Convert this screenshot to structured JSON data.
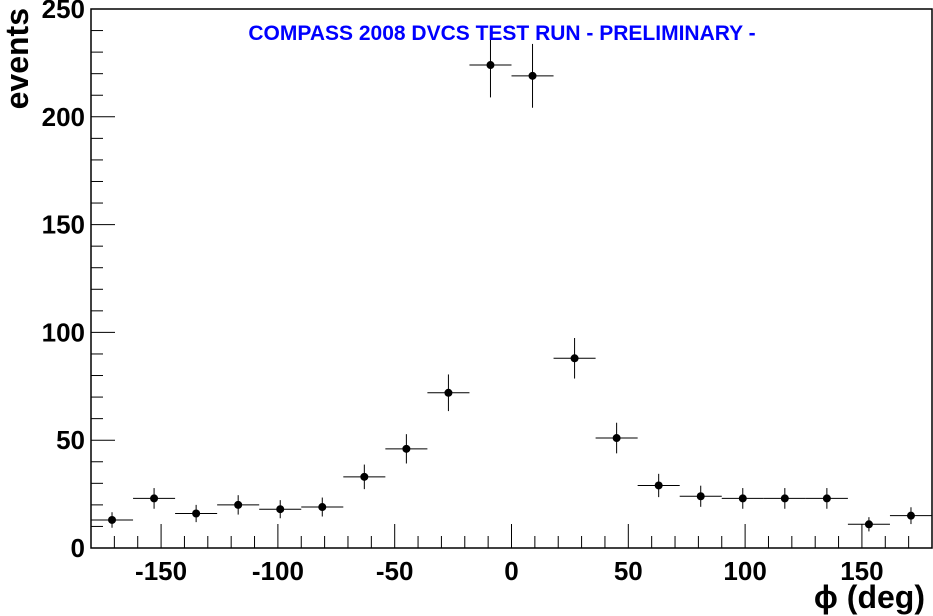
{
  "chart_data": {
    "type": "scatter",
    "title": "COMPASS 2008 DVCS TEST RUN  - PRELIMINARY -",
    "title_color": "#0000ff",
    "xlabel": "ϕ (deg)",
    "ylabel": "events",
    "xlim": [
      -180,
      180
    ],
    "ylim": [
      0,
      250
    ],
    "x_ticks": [
      -150,
      -100,
      -50,
      0,
      50,
      100,
      150
    ],
    "y_ticks": [
      0,
      50,
      100,
      150,
      200,
      250
    ],
    "grid": false,
    "marker_color": "#000000",
    "bin_width": 18,
    "series": [
      {
        "x": [
          -171,
          -153,
          -135,
          -117,
          -99,
          -81,
          -63,
          -45,
          -27,
          -9,
          9,
          27,
          45,
          63,
          81,
          99,
          117,
          135,
          153,
          171
        ],
        "y": [
          13,
          23,
          16,
          20,
          18,
          19,
          33,
          46,
          72,
          224,
          219,
          88,
          51,
          29,
          24,
          23,
          23,
          23,
          11,
          15
        ],
        "y_err": [
          3.6,
          4.8,
          4.0,
          4.5,
          4.2,
          4.4,
          5.7,
          6.8,
          8.5,
          15,
          14.8,
          9.4,
          7.1,
          5.4,
          4.9,
          4.8,
          4.8,
          4.8,
          3.3,
          3.9
        ]
      }
    ]
  }
}
